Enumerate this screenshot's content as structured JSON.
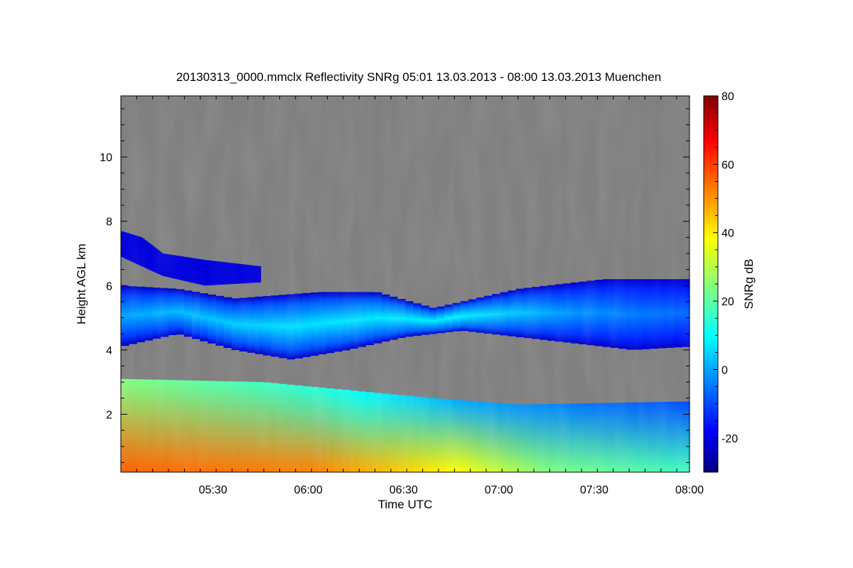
{
  "chart_data": {
    "type": "heatmap",
    "title": "20130313_0000.mmclx Reflectivity SNRg   05:01 13.03.2013 - 08:00 13.03.2013 Muenchen",
    "xlabel": "Time UTC",
    "ylabel": "Height AGL km",
    "x_range": [
      "05:01",
      "08:00"
    ],
    "x_ticks": [
      "05:30",
      "06:00",
      "06:30",
      "07:00",
      "07:30",
      "08:00"
    ],
    "ylim": [
      0.2,
      11.9
    ],
    "y_ticks": [
      2,
      4,
      6,
      8,
      10
    ],
    "colorbar": {
      "label": "SNRg dB",
      "range": [
        -30,
        80
      ],
      "ticks": [
        -20,
        0,
        20,
        40,
        60,
        80
      ],
      "colormap": "jet"
    },
    "background_color": "#808080",
    "layers": [
      {
        "name": "low",
        "x_start": "05:01",
        "x_end": "08:00",
        "bottom_km": [
          0.2,
          0.2
        ],
        "top_km": [
          [
            0,
            3.1
          ],
          [
            0.25,
            3.0
          ],
          [
            0.4,
            2.75
          ],
          [
            0.55,
            2.5
          ],
          [
            0.7,
            2.3
          ],
          [
            0.85,
            2.35
          ],
          [
            1,
            2.4
          ]
        ],
        "snr_bottom_db": [
          [
            0,
            56
          ],
          [
            0.35,
            52
          ],
          [
            0.6,
            38
          ],
          [
            0.75,
            25
          ],
          [
            1,
            18
          ]
        ],
        "snr_top_db": [
          [
            0,
            25
          ],
          [
            0.35,
            15
          ],
          [
            0.6,
            2
          ],
          [
            1,
            -8
          ]
        ]
      },
      {
        "name": "middle",
        "x_start": "05:01",
        "x_end": "08:00",
        "top_km": [
          [
            0,
            6.0
          ],
          [
            0.1,
            5.9
          ],
          [
            0.2,
            5.6
          ],
          [
            0.35,
            5.8
          ],
          [
            0.45,
            5.8
          ],
          [
            0.55,
            5.3
          ],
          [
            0.7,
            5.9
          ],
          [
            0.85,
            6.2
          ],
          [
            1,
            6.2
          ]
        ],
        "bottom_km": [
          [
            0,
            4.1
          ],
          [
            0.1,
            4.5
          ],
          [
            0.2,
            4.0
          ],
          [
            0.3,
            3.7
          ],
          [
            0.4,
            4.0
          ],
          [
            0.5,
            4.4
          ],
          [
            0.6,
            4.6
          ],
          [
            0.75,
            4.3
          ],
          [
            0.9,
            4.0
          ],
          [
            1,
            4.1
          ]
        ],
        "snr_core_db": [
          [
            0,
            2
          ],
          [
            0.3,
            8
          ],
          [
            0.6,
            10
          ],
          [
            0.8,
            0
          ],
          [
            1,
            -5
          ]
        ],
        "snr_edge_db": -22
      },
      {
        "name": "upper",
        "x_start": "05:01",
        "x_end": "05:45",
        "top_km": [
          [
            0,
            7.7
          ],
          [
            0.15,
            7.5
          ],
          [
            0.3,
            7.0
          ],
          [
            0.6,
            6.8
          ],
          [
            1,
            6.6
          ]
        ],
        "bottom_km": [
          [
            0,
            6.9
          ],
          [
            0.3,
            6.3
          ],
          [
            0.6,
            6.0
          ],
          [
            1,
            6.1
          ]
        ],
        "snr_db": -20
      }
    ]
  }
}
